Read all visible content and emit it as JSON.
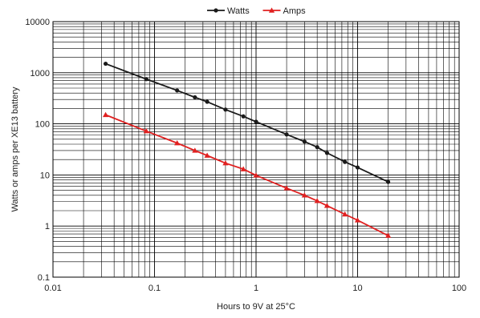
{
  "chart_data": {
    "type": "line",
    "title": "",
    "xlabel": "Hours to 9V at 25°C",
    "ylabel": "Watts or amps per XE13 battery",
    "x_scale": "log",
    "y_scale": "log",
    "xlim": [
      0.01,
      100
    ],
    "ylim": [
      0.1,
      10000
    ],
    "x_ticks": [
      "0.01",
      "0.1",
      "1",
      "10",
      "100"
    ],
    "y_ticks": [
      "0.1",
      "1",
      "10",
      "100",
      "1000",
      "10000"
    ],
    "grid": true,
    "legend_position": "top-center",
    "series": [
      {
        "name": "Watts",
        "color": "#1a1a1a",
        "marker": "circle",
        "x": [
          0.033,
          0.083,
          0.167,
          0.25,
          0.33,
          0.5,
          0.75,
          1.0,
          2.0,
          3.0,
          4.0,
          5.0,
          7.5,
          10.0,
          20.0
        ],
        "y": [
          1500,
          750,
          450,
          330,
          270,
          190,
          140,
          110,
          62,
          45,
          35,
          27,
          18,
          14,
          7.3
        ]
      },
      {
        "name": "Amps",
        "color": "#e02020",
        "marker": "triangle",
        "x": [
          0.033,
          0.083,
          0.167,
          0.25,
          0.33,
          0.5,
          0.75,
          1.0,
          2.0,
          3.0,
          4.0,
          5.0,
          7.5,
          10.0,
          20.0
        ],
        "y": [
          150,
          72,
          42,
          30,
          24,
          17,
          13,
          9.8,
          5.5,
          4.0,
          3.1,
          2.5,
          1.7,
          1.3,
          0.65
        ]
      }
    ]
  }
}
